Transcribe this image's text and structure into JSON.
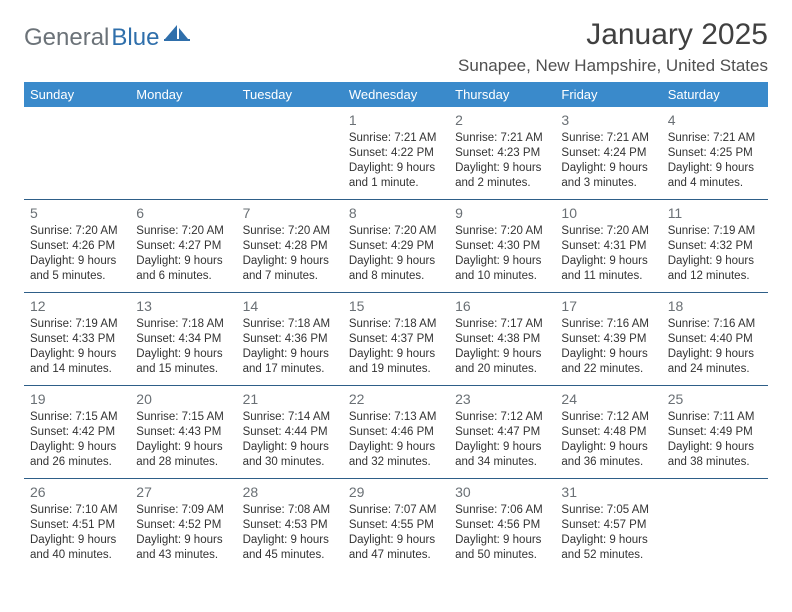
{
  "logo": {
    "text1": "General",
    "text2": "Blue"
  },
  "title": "January 2025",
  "location": "Sunapee, New Hampshire, United States",
  "colors": {
    "header_bg": "#3a8acb",
    "header_text": "#ffffff",
    "row_border": "#2e5e88",
    "daynum": "#6a7075",
    "body_text": "#333333",
    "logo_gray": "#6b7278",
    "logo_blue": "#2f6fab"
  },
  "weekdays": [
    "Sunday",
    "Monday",
    "Tuesday",
    "Wednesday",
    "Thursday",
    "Friday",
    "Saturday"
  ],
  "weeks": [
    [
      null,
      null,
      null,
      {
        "n": "1",
        "sr": "7:21 AM",
        "ss": "4:22 PM",
        "dl": "9 hours and 1 minute."
      },
      {
        "n": "2",
        "sr": "7:21 AM",
        "ss": "4:23 PM",
        "dl": "9 hours and 2 minutes."
      },
      {
        "n": "3",
        "sr": "7:21 AM",
        "ss": "4:24 PM",
        "dl": "9 hours and 3 minutes."
      },
      {
        "n": "4",
        "sr": "7:21 AM",
        "ss": "4:25 PM",
        "dl": "9 hours and 4 minutes."
      }
    ],
    [
      {
        "n": "5",
        "sr": "7:20 AM",
        "ss": "4:26 PM",
        "dl": "9 hours and 5 minutes."
      },
      {
        "n": "6",
        "sr": "7:20 AM",
        "ss": "4:27 PM",
        "dl": "9 hours and 6 minutes."
      },
      {
        "n": "7",
        "sr": "7:20 AM",
        "ss": "4:28 PM",
        "dl": "9 hours and 7 minutes."
      },
      {
        "n": "8",
        "sr": "7:20 AM",
        "ss": "4:29 PM",
        "dl": "9 hours and 8 minutes."
      },
      {
        "n": "9",
        "sr": "7:20 AM",
        "ss": "4:30 PM",
        "dl": "9 hours and 10 minutes."
      },
      {
        "n": "10",
        "sr": "7:20 AM",
        "ss": "4:31 PM",
        "dl": "9 hours and 11 minutes."
      },
      {
        "n": "11",
        "sr": "7:19 AM",
        "ss": "4:32 PM",
        "dl": "9 hours and 12 minutes."
      }
    ],
    [
      {
        "n": "12",
        "sr": "7:19 AM",
        "ss": "4:33 PM",
        "dl": "9 hours and 14 minutes."
      },
      {
        "n": "13",
        "sr": "7:18 AM",
        "ss": "4:34 PM",
        "dl": "9 hours and 15 minutes."
      },
      {
        "n": "14",
        "sr": "7:18 AM",
        "ss": "4:36 PM",
        "dl": "9 hours and 17 minutes."
      },
      {
        "n": "15",
        "sr": "7:18 AM",
        "ss": "4:37 PM",
        "dl": "9 hours and 19 minutes."
      },
      {
        "n": "16",
        "sr": "7:17 AM",
        "ss": "4:38 PM",
        "dl": "9 hours and 20 minutes."
      },
      {
        "n": "17",
        "sr": "7:16 AM",
        "ss": "4:39 PM",
        "dl": "9 hours and 22 minutes."
      },
      {
        "n": "18",
        "sr": "7:16 AM",
        "ss": "4:40 PM",
        "dl": "9 hours and 24 minutes."
      }
    ],
    [
      {
        "n": "19",
        "sr": "7:15 AM",
        "ss": "4:42 PM",
        "dl": "9 hours and 26 minutes."
      },
      {
        "n": "20",
        "sr": "7:15 AM",
        "ss": "4:43 PM",
        "dl": "9 hours and 28 minutes."
      },
      {
        "n": "21",
        "sr": "7:14 AM",
        "ss": "4:44 PM",
        "dl": "9 hours and 30 minutes."
      },
      {
        "n": "22",
        "sr": "7:13 AM",
        "ss": "4:46 PM",
        "dl": "9 hours and 32 minutes."
      },
      {
        "n": "23",
        "sr": "7:12 AM",
        "ss": "4:47 PM",
        "dl": "9 hours and 34 minutes."
      },
      {
        "n": "24",
        "sr": "7:12 AM",
        "ss": "4:48 PM",
        "dl": "9 hours and 36 minutes."
      },
      {
        "n": "25",
        "sr": "7:11 AM",
        "ss": "4:49 PM",
        "dl": "9 hours and 38 minutes."
      }
    ],
    [
      {
        "n": "26",
        "sr": "7:10 AM",
        "ss": "4:51 PM",
        "dl": "9 hours and 40 minutes."
      },
      {
        "n": "27",
        "sr": "7:09 AM",
        "ss": "4:52 PM",
        "dl": "9 hours and 43 minutes."
      },
      {
        "n": "28",
        "sr": "7:08 AM",
        "ss": "4:53 PM",
        "dl": "9 hours and 45 minutes."
      },
      {
        "n": "29",
        "sr": "7:07 AM",
        "ss": "4:55 PM",
        "dl": "9 hours and 47 minutes."
      },
      {
        "n": "30",
        "sr": "7:06 AM",
        "ss": "4:56 PM",
        "dl": "9 hours and 50 minutes."
      },
      {
        "n": "31",
        "sr": "7:05 AM",
        "ss": "4:57 PM",
        "dl": "9 hours and 52 minutes."
      },
      null
    ]
  ],
  "labels": {
    "sunrise": "Sunrise:",
    "sunset": "Sunset:",
    "daylight": "Daylight:"
  }
}
